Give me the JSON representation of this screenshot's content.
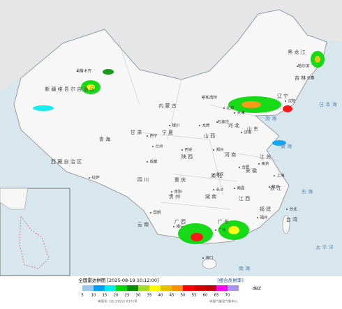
{
  "title": "全国雷达拼图 [2025-08-19 10:12:00]",
  "product": "[组合反射率]",
  "legend": {
    "ticks": [
      5,
      10,
      15,
      20,
      25,
      30,
      35,
      40,
      45,
      50,
      55,
      60,
      65,
      70
    ],
    "colors": [
      "#9cc8f0",
      "#01a0f6",
      "#00ecec",
      "#00d800",
      "#019000",
      "#a0dc28",
      "#ffff00",
      "#e7c000",
      "#ff9000",
      "#ff0000",
      "#d60000",
      "#c00000",
      "#ff00f0",
      "#ad90f0"
    ],
    "unit": "dBZ"
  },
  "footer": {
    "left": "审图号: GS (2022) 0372号",
    "right": "中国气象局气象中心"
  },
  "labels": {
    "provinces": [
      "新 疆 维 吾 尔 自 治 区",
      "西 藏 自 治 区",
      "青 海",
      "甘 肃",
      "内 蒙 古",
      "黑 龙 江",
      "吉 林",
      "辽 宁",
      "河 北",
      "山 西",
      "陕 西",
      "四 川",
      "云 南",
      "贵 州",
      "广 西",
      "广 东",
      "湖 南",
      "湖 北",
      "河 南",
      "山 东",
      "江 苏",
      "安 徽",
      "浙 江",
      "江 西",
      "福 建",
      "台 湾",
      "宁 夏",
      "重 庆"
    ],
    "cities": [
      "乌鲁木齐",
      "拉萨",
      "西宁",
      "兰州",
      "银川",
      "呼和浩特",
      "北京",
      "天津",
      "哈尔滨",
      "长春",
      "沈阳",
      "石家庄",
      "太原",
      "济南",
      "郑州",
      "西安",
      "成都",
      "武汉",
      "南京",
      "上海",
      "杭州",
      "南昌",
      "长沙",
      "贵阳",
      "昆明",
      "南宁",
      "广州",
      "福州",
      "台北",
      "海口",
      "合肥"
    ],
    "seas": [
      "渤 海",
      "黄 海",
      "东 海",
      "南 海",
      "日 本 海",
      "太 平 洋"
    ]
  }
}
